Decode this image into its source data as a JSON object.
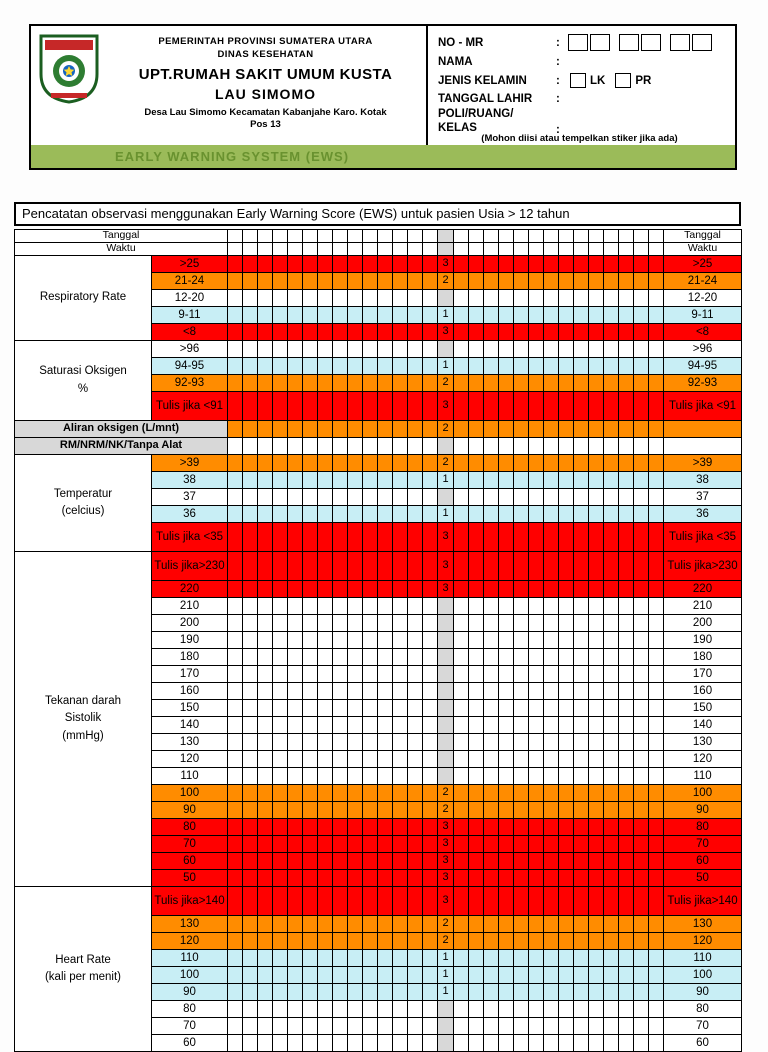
{
  "header": {
    "colon": ":",
    "gov1": "PEMERINTAH PROVINSI SUMATERA UTARA",
    "gov2": "DINAS KESEHATAN",
    "hospital1": "UPT.RUMAH SAKIT UMUM KUSTA",
    "hospital2": "LAU SIMOMO",
    "address": "Desa Lau Simomo Kecamatan Kabanjahe Karo. Kotak Pos 13",
    "banner": "EARLY WARNING SYSTEM (EWS)",
    "fields": {
      "no_mr": "NO - MR",
      "nama": "NAMA",
      "jenis_kelamin": "JENIS KELAMIN",
      "lk": "LK",
      "pr": "PR",
      "tanggal_lahir": "TANGGAL LAHIR",
      "poli_ruang": "POLI/RUANG/",
      "kelas": "KELAS",
      "note": "(Mohon diisi atau tempelkan stiker jika ada)"
    }
  },
  "colors": {
    "score_red": "#FF0000",
    "score_orange": "#FF8C00",
    "score_cyan": "#C8EEF5",
    "score_gray": "#D8D8D8",
    "banner_green": "#9BBB59",
    "banner_text_green": "#69922F"
  },
  "table": {
    "title": "Pencatatan observasi menggunakan Early Warning Score (EWS) untuk pasien Usia > 12 tahun",
    "tanggal_label": "Tanggal",
    "waktu_label": "Waktu",
    "groups": [
      {
        "lines": [
          "Respiratory Rate"
        ],
        "start": 0,
        "span": 5
      },
      {
        "lines": [
          "Saturasi Oksigen",
          "%"
        ],
        "start": 5,
        "span": 4
      },
      {
        "lines": [
          "Temperatur",
          "(celcius)"
        ],
        "start": 11,
        "span": 5
      },
      {
        "lines": [
          "Tekanan darah",
          "Sistolik",
          "(mmHg)"
        ],
        "start": 16,
        "span": 19
      },
      {
        "lines": [
          "Heart Rate",
          "(kali per menit)"
        ],
        "start": 35,
        "span": 9
      }
    ],
    "rows": [
      {
        "value": ">25",
        "score": "3",
        "color": "red"
      },
      {
        "value": "21-24",
        "score": "2",
        "color": "orange"
      },
      {
        "value": "12-20",
        "score": "",
        "color": "white"
      },
      {
        "value": "9-11",
        "score": "1",
        "color": "cyan"
      },
      {
        "value": "<8",
        "score": "3",
        "color": "red"
      },
      {
        "value": ">96",
        "score": "",
        "color": "white"
      },
      {
        "value": "94-95",
        "score": "1",
        "color": "cyan"
      },
      {
        "value": "92-93",
        "score": "2",
        "color": "orange"
      },
      {
        "value": "Tulis jika <91",
        "score": "3",
        "color": "red",
        "tall": true
      },
      {
        "wide_label": "Aliran oksigen (L/mnt)",
        "score": "2",
        "color": "orange"
      },
      {
        "wide_label": "RM/NRM/NK/Tanpa Alat",
        "score": "",
        "color": "white"
      },
      {
        "value": ">39",
        "score": "2",
        "color": "orange"
      },
      {
        "value": "38",
        "score": "1",
        "color": "cyan"
      },
      {
        "value": "37",
        "score": "",
        "color": "white"
      },
      {
        "value": "36",
        "score": "1",
        "color": "cyan"
      },
      {
        "value": "Tulis jika <35",
        "score": "3",
        "color": "red",
        "tall": true
      },
      {
        "value": "Tulis jika>230",
        "score": "3",
        "color": "red",
        "tall": true
      },
      {
        "value": "220",
        "score": "3",
        "color": "red"
      },
      {
        "value": "210",
        "score": "",
        "color": "white"
      },
      {
        "value": "200",
        "score": "",
        "color": "white"
      },
      {
        "value": "190",
        "score": "",
        "color": "white"
      },
      {
        "value": "180",
        "score": "",
        "color": "white"
      },
      {
        "value": "170",
        "score": "",
        "color": "white"
      },
      {
        "value": "160",
        "score": "",
        "color": "white"
      },
      {
        "value": "150",
        "score": "",
        "color": "white"
      },
      {
        "value": "140",
        "score": "",
        "color": "white"
      },
      {
        "value": "130",
        "score": "",
        "color": "white"
      },
      {
        "value": "120",
        "score": "",
        "color": "white"
      },
      {
        "value": "110",
        "score": "",
        "color": "white"
      },
      {
        "value": "100",
        "score": "2",
        "color": "orange"
      },
      {
        "value": "90",
        "score": "2",
        "color": "orange"
      },
      {
        "value": "80",
        "score": "3",
        "color": "red"
      },
      {
        "value": "70",
        "score": "3",
        "color": "red"
      },
      {
        "value": "60",
        "score": "3",
        "color": "red"
      },
      {
        "value": "50",
        "score": "3",
        "color": "red"
      },
      {
        "value": "Tulis jika>140",
        "score": "3",
        "color": "red",
        "tall": true
      },
      {
        "value": "130",
        "score": "2",
        "color": "orange"
      },
      {
        "value": "120",
        "score": "2",
        "color": "orange"
      },
      {
        "value": "110",
        "score": "1",
        "color": "cyan"
      },
      {
        "value": "100",
        "score": "1",
        "color": "cyan"
      },
      {
        "value": "90",
        "score": "1",
        "color": "cyan"
      },
      {
        "value": "80",
        "score": "",
        "color": "white"
      },
      {
        "value": "70",
        "score": "",
        "color": "white"
      },
      {
        "value": "60",
        "score": "",
        "color": "white"
      }
    ]
  }
}
